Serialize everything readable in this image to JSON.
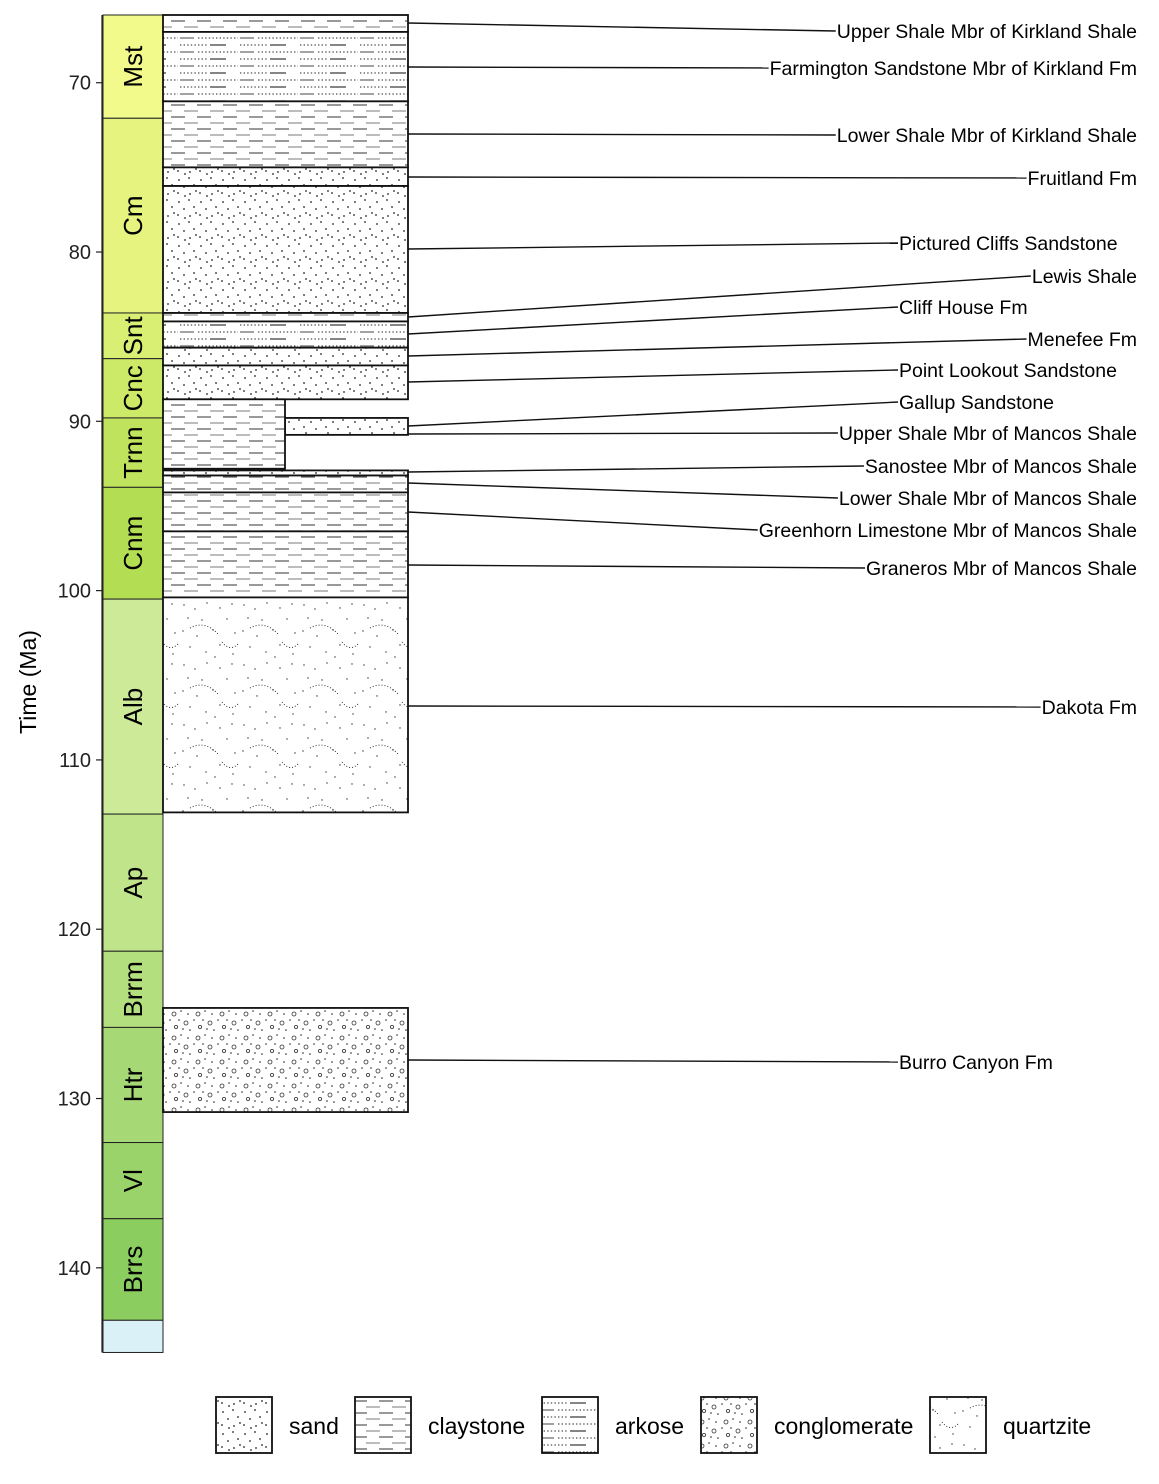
{
  "chart_data": {
    "type": "stratigraphic-column",
    "ylabel": "Time (Ma)",
    "ylim": [
      66,
      145
    ],
    "y_reversed": true,
    "yticks": [
      70,
      80,
      90,
      100,
      110,
      120,
      130,
      140
    ],
    "grid": false,
    "legend_placement": "bottom",
    "stages": [
      {
        "label": "Mst",
        "top": 66.0,
        "base": 72.1,
        "color": "#F2FA8C"
      },
      {
        "label": "Cm",
        "top": 72.1,
        "base": 83.6,
        "color": "#E6F47F"
      },
      {
        "label": "Snt",
        "top": 83.6,
        "base": 86.3,
        "color": "#D9EF74"
      },
      {
        "label": "Cnc",
        "top": 86.3,
        "base": 89.8,
        "color": "#CCE968"
      },
      {
        "label": "Trnn",
        "top": 89.8,
        "base": 93.9,
        "color": "#BFE35D"
      },
      {
        "label": "Cnm",
        "top": 93.9,
        "base": 100.5,
        "color": "#B3DE53"
      },
      {
        "label": "Alb",
        "top": 100.5,
        "base": 113.2,
        "color": "#CCEA97"
      },
      {
        "label": "Ap",
        "top": 113.2,
        "base": 121.3,
        "color": "#BFE48A"
      },
      {
        "label": "Brrm",
        "top": 121.3,
        "base": 125.8,
        "color": "#B3DF7F"
      },
      {
        "label": "Htr",
        "top": 125.8,
        "base": 132.6,
        "color": "#A6D975"
      },
      {
        "label": "Vl",
        "top": 132.6,
        "base": 137.1,
        "color": "#99D36A"
      },
      {
        "label": "Brrs",
        "top": 137.1,
        "base": 143.1,
        "color": "#8CCD60"
      },
      {
        "label": "",
        "top": 143.1,
        "base": 145.0,
        "color": "#D9F1F7"
      }
    ],
    "units": [
      {
        "name": "Upper Shale Mbr of Kirkland Shale",
        "top": 66.0,
        "base": 67.0,
        "lithology": "claystone",
        "column": "full"
      },
      {
        "name": "Farmington Sandstone Mbr of Kirkland Fm",
        "top": 67.0,
        "base": 71.1,
        "lithology": "arkose",
        "column": "full"
      },
      {
        "name": "Lower Shale Mbr of Kirkland Shale",
        "top": 71.1,
        "base": 75.0,
        "lithology": "claystone",
        "column": "full"
      },
      {
        "name": "Fruitland Fm",
        "top": 75.0,
        "base": 76.1,
        "lithology": "sand",
        "column": "full"
      },
      {
        "name": "Pictured Cliffs Sandstone",
        "top": 76.1,
        "base": 83.6,
        "lithology": "sand",
        "column": "full"
      },
      {
        "name": "Lewis Shale",
        "top": 83.6,
        "base": 84.1,
        "lithology": "claystone",
        "column": "full"
      },
      {
        "name": "Cliff House Fm",
        "top": 84.1,
        "base": 85.65,
        "lithology": "arkose",
        "column": "full"
      },
      {
        "name": "Menefee Fm",
        "top": 85.65,
        "base": 86.7,
        "lithology": "sand",
        "column": "full"
      },
      {
        "name": "Point Lookout Sandstone",
        "top": 86.7,
        "base": 88.7,
        "lithology": "sand",
        "column": "full"
      },
      {
        "name": "Gallup Sandstone",
        "top": 89.8,
        "base": 90.8,
        "lithology": "sand",
        "column": "right-half"
      },
      {
        "name": "Upper Shale Mbr of Mancos Shale",
        "top": 88.7,
        "base": 92.8,
        "lithology": "claystone",
        "column": "left-half"
      },
      {
        "name": "Sanostee Mbr of Mancos Shale",
        "top": 92.9,
        "base": 93.2,
        "lithology": "sand",
        "column": "full"
      },
      {
        "name": "Lower Shale Mbr of Mancos Shale",
        "top": 93.2,
        "base": 94.2,
        "lithology": "claystone",
        "column": "full"
      },
      {
        "name": "Greenhorn Limestone Mbr of Mancos Shale",
        "top": 94.2,
        "base": 96.5,
        "lithology": "claystone",
        "column": "full"
      },
      {
        "name": "Graneros Mbr of Mancos Shale",
        "top": 96.5,
        "base": 100.4,
        "lithology": "claystone",
        "column": "full"
      },
      {
        "name": "Dakota Fm",
        "top": 100.4,
        "base": 113.1,
        "lithology": "quartzite",
        "column": "full"
      },
      {
        "name": "Burro Canyon Fm",
        "top": 124.65,
        "base": 130.8,
        "lithology": "conglomerate",
        "column": "full"
      }
    ],
    "legend": [
      "sand",
      "claystone",
      "arkose",
      "conglomerate",
      "quartzite"
    ]
  }
}
